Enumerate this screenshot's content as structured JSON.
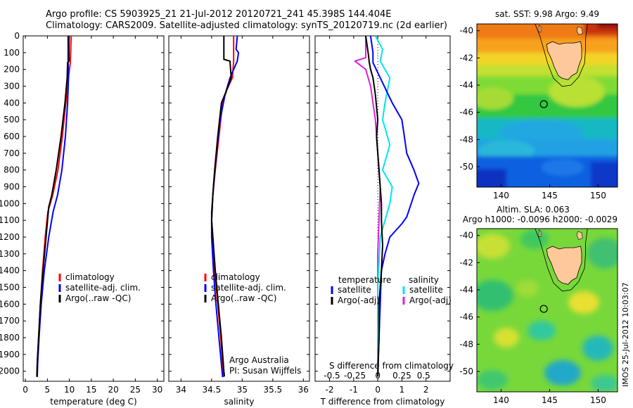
{
  "header": {
    "line1": "Argo profile: CS 5903925_21 21-Jul-2012 20120721_241 45.398S 144.404E",
    "line2": "Climatology: CARS2009. Satellite-adjusted climatology: synTS_20120719.nc (2d earlier)"
  },
  "credits": {
    "org": "Argo Australia",
    "pi": "PI: Susan Wijffels"
  },
  "stamp": "IMOS 25-Jul-2012 10:03:07",
  "colors": {
    "clim": "#ff0000",
    "sat": "#0000ff",
    "argo": "#000000",
    "satS": "#00e5ee",
    "argoS": "#e020e0",
    "land": "#ffc89a"
  },
  "chart_data": [
    {
      "type": "line",
      "xlabel": "temperature (deg C)",
      "xlim": [
        -0.5,
        31.5
      ],
      "xticks": [
        0,
        5,
        10,
        15,
        20,
        25,
        30
      ],
      "ylim": [
        0,
        2060
      ],
      "yticks": [
        0,
        100,
        200,
        300,
        400,
        500,
        600,
        700,
        800,
        900,
        1000,
        1100,
        1200,
        1300,
        1400,
        1500,
        1600,
        1700,
        1800,
        1900,
        2000
      ],
      "legend": [
        {
          "key": "clim",
          "label": "climatology"
        },
        {
          "key": "sat",
          "label": "satellite-adj. clim."
        },
        {
          "key": "argo",
          "label": "Argo(..raw -QC)"
        }
      ],
      "series": [
        {
          "key": "clim",
          "points": [
            [
              10.4,
              0
            ],
            [
              10.3,
              100
            ],
            [
              10.2,
              160
            ],
            [
              9.8,
              250
            ],
            [
              9.2,
              400
            ],
            [
              8.4,
              600
            ],
            [
              7.4,
              800
            ],
            [
              6.2,
              950
            ],
            [
              5.1,
              1050
            ],
            [
              4.5,
              1200
            ],
            [
              3.9,
              1400
            ],
            [
              3.4,
              1600
            ],
            [
              3.0,
              1800
            ],
            [
              2.7,
              1950
            ],
            [
              2.6,
              2035
            ]
          ]
        },
        {
          "key": "sat",
          "points": [
            [
              9.7,
              0
            ],
            [
              9.7,
              100
            ],
            [
              9.7,
              160
            ],
            [
              9.8,
              250
            ],
            [
              9.6,
              400
            ],
            [
              9.1,
              600
            ],
            [
              8.3,
              800
            ],
            [
              7.3,
              950
            ],
            [
              6.3,
              1050
            ],
            [
              5.3,
              1200
            ],
            [
              4.3,
              1400
            ],
            [
              3.6,
              1600
            ],
            [
              3.1,
              1800
            ],
            [
              2.8,
              1950
            ],
            [
              2.7,
              2035
            ]
          ]
        },
        {
          "key": "argo",
          "points": [
            [
              9.9,
              0
            ],
            [
              9.9,
              80
            ],
            [
              9.9,
              150
            ],
            [
              9.6,
              160
            ],
            [
              9.5,
              250
            ],
            [
              9.0,
              400
            ],
            [
              8.1,
              600
            ],
            [
              7.0,
              800
            ],
            [
              6.0,
              950
            ],
            [
              5.3,
              1020
            ],
            [
              4.7,
              1200
            ],
            [
              4.0,
              1400
            ],
            [
              3.4,
              1600
            ],
            [
              3.0,
              1800
            ],
            [
              2.7,
              1950
            ],
            [
              2.6,
              2030
            ]
          ]
        }
      ]
    },
    {
      "type": "line",
      "xlabel": "salinity",
      "xlim": [
        33.8,
        36.1
      ],
      "xticks": [
        34,
        34.5,
        35,
        35.5,
        36
      ],
      "ylim": [
        0,
        2060
      ],
      "legend": [
        {
          "key": "clim",
          "label": "climatology"
        },
        {
          "key": "sat",
          "label": "satellite-adj. clim."
        },
        {
          "key": "argo",
          "label": "Argo(..raw -QC)"
        }
      ],
      "series": [
        {
          "key": "clim",
          "points": [
            [
              34.86,
              0
            ],
            [
              34.86,
              150
            ],
            [
              34.84,
              250
            ],
            [
              34.75,
              320
            ],
            [
              34.68,
              400
            ],
            [
              34.62,
              600
            ],
            [
              34.56,
              800
            ],
            [
              34.52,
              950
            ],
            [
              34.5,
              1100
            ],
            [
              34.52,
              1200
            ],
            [
              34.55,
              1400
            ],
            [
              34.6,
              1600
            ],
            [
              34.65,
              1800
            ],
            [
              34.69,
              2000
            ],
            [
              34.7,
              2035
            ]
          ]
        },
        {
          "key": "sat",
          "points": [
            [
              34.92,
              0
            ],
            [
              34.9,
              80
            ],
            [
              34.94,
              100
            ],
            [
              34.92,
              150
            ],
            [
              34.8,
              250
            ],
            [
              34.72,
              350
            ],
            [
              34.64,
              500
            ],
            [
              34.58,
              700
            ],
            [
              34.53,
              900
            ],
            [
              34.5,
              1050
            ],
            [
              34.5,
              1200
            ],
            [
              34.53,
              1400
            ],
            [
              34.57,
              1600
            ],
            [
              34.62,
              1800
            ],
            [
              34.67,
              2000
            ],
            [
              34.68,
              2035
            ]
          ]
        },
        {
          "key": "argo",
          "points": [
            [
              34.7,
              0
            ],
            [
              34.7,
              140
            ],
            [
              34.8,
              150
            ],
            [
              34.82,
              250
            ],
            [
              34.74,
              330
            ],
            [
              34.66,
              400
            ],
            [
              34.6,
              600
            ],
            [
              34.55,
              800
            ],
            [
              34.52,
              950
            ],
            [
              34.5,
              1100
            ],
            [
              34.52,
              1200
            ],
            [
              34.56,
              1400
            ],
            [
              34.61,
              1600
            ],
            [
              34.66,
              1800
            ],
            [
              34.7,
              2000
            ],
            [
              34.71,
              2030
            ]
          ]
        }
      ]
    },
    {
      "type": "line",
      "xlabel": "T difference from climatology",
      "top_xlabel": "S difference from climatology",
      "xlim": [
        -2.6,
        3.0
      ],
      "xticks": [
        -2,
        -1,
        0,
        1,
        2
      ],
      "top_ticks": [
        {
          "label": "-0.5",
          "x": -1.9
        },
        {
          "label": "-0.25",
          "x": -0.95
        },
        {
          "label": "0",
          "x": 0
        },
        {
          "label": "0.25",
          "x": 1.0
        },
        {
          "label": "0.5",
          "x": 1.9
        }
      ],
      "ylim": [
        0,
        2060
      ],
      "legend_T": {
        "title": "temperature",
        "items": [
          {
            "key": "sat",
            "label": "satellite"
          },
          {
            "key": "argo",
            "label": "Argo(-adj)"
          }
        ]
      },
      "legend_S": {
        "title": "salinity",
        "items": [
          {
            "key": "satS",
            "label": "satellite"
          },
          {
            "key": "argoS",
            "label": "Argo(-adj)"
          }
        ]
      },
      "series": [
        {
          "key": "argoS",
          "points": [
            [
              -0.5,
              0
            ],
            [
              -0.5,
              130
            ],
            [
              -0.95,
              150
            ],
            [
              -0.5,
              200
            ],
            [
              -0.3,
              300
            ],
            [
              -0.1,
              500
            ],
            [
              0,
              700
            ],
            [
              0.1,
              900
            ],
            [
              0.05,
              1100
            ],
            [
              0,
              1300
            ],
            [
              0,
              1600
            ],
            [
              0,
              2030
            ]
          ]
        },
        {
          "key": "satS",
          "points": [
            [
              -0.1,
              0
            ],
            [
              0.2,
              80
            ],
            [
              0.1,
              150
            ],
            [
              0.5,
              250
            ],
            [
              0.3,
              400
            ],
            [
              0.2,
              500
            ],
            [
              0.5,
              650
            ],
            [
              0.2,
              800
            ],
            [
              0.6,
              900
            ],
            [
              0.5,
              1000
            ],
            [
              0.1,
              1200
            ],
            [
              0,
              1500
            ],
            [
              0,
              2030
            ]
          ]
        },
        {
          "key": "sat",
          "points": [
            [
              -0.3,
              0
            ],
            [
              -0.2,
              100
            ],
            [
              -0.2,
              160
            ],
            [
              0.1,
              250
            ],
            [
              0.6,
              400
            ],
            [
              1.0,
              500
            ],
            [
              1.1,
              600
            ],
            [
              1.2,
              700
            ],
            [
              1.5,
              800
            ],
            [
              1.7,
              880
            ],
            [
              1.5,
              950
            ],
            [
              1.2,
              1080
            ],
            [
              1.0,
              1120
            ],
            [
              0.5,
              1200
            ],
            [
              0.3,
              1300
            ],
            [
              0.15,
              1400
            ],
            [
              0.1,
              1600
            ],
            [
              0.05,
              1800
            ],
            [
              0,
              2030
            ]
          ]
        },
        {
          "key": "argo",
          "points": [
            [
              -0.5,
              0
            ],
            [
              -0.4,
              100
            ],
            [
              -0.35,
              160
            ],
            [
              -0.3,
              200
            ],
            [
              -0.2,
              250
            ],
            [
              -0.1,
              350
            ],
            [
              0,
              500
            ],
            [
              -0.05,
              600
            ],
            [
              0.1,
              900
            ],
            [
              0.15,
              1000
            ],
            [
              0.15,
              1100
            ],
            [
              0.2,
              1250
            ],
            [
              0.15,
              1400
            ],
            [
              0.1,
              1500
            ],
            [
              0.05,
              1600
            ],
            [
              0.05,
              1800
            ],
            [
              0,
              2030
            ]
          ]
        }
      ]
    },
    {
      "type": "heatmap",
      "title": "sat. SST: 9.98 Argo: 9.49",
      "xlim": [
        137.5,
        152
      ],
      "ylim": [
        -51.5,
        -39.5
      ],
      "xticks": [
        140,
        145,
        150
      ],
      "yticks": [
        -40,
        -42,
        -44,
        -46,
        -48,
        -50
      ],
      "marker": [
        144.4,
        -45.4
      ]
    },
    {
      "type": "heatmap",
      "title": "Altim. SLA: 0.063",
      "subtitle": "Argo h1000: -0.0096 h2000: -0.0029",
      "xlim": [
        137.5,
        152
      ],
      "ylim": [
        -51.5,
        -39.5
      ],
      "xticks": [
        140,
        145,
        150
      ],
      "yticks": [
        -40,
        -42,
        -44,
        -46,
        -48,
        -50
      ],
      "marker": [
        144.4,
        -45.4
      ]
    }
  ]
}
